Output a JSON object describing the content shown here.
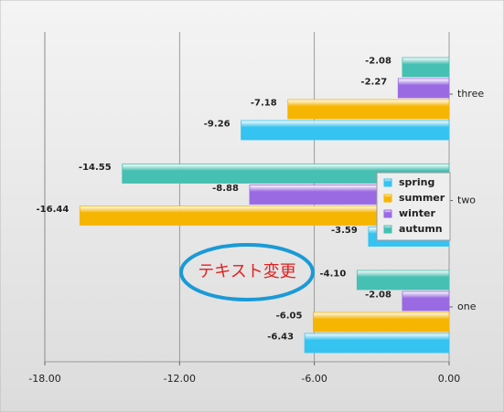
{
  "chart_data": {
    "type": "hbar",
    "categories": [
      "one",
      "two",
      "three"
    ],
    "series": [
      {
        "name": "spring",
        "color": "#35c3f2",
        "values": [
          -6.43,
          -3.59,
          -9.26
        ]
      },
      {
        "name": "summer",
        "color": "#f6b500",
        "values": [
          -6.05,
          -16.44,
          -7.18
        ]
      },
      {
        "name": "winter",
        "color": "#9a6ae2",
        "values": [
          -2.08,
          -8.88,
          -2.27
        ]
      },
      {
        "name": "autumn",
        "color": "#45c0b2",
        "values": [
          -4.1,
          -14.55,
          -2.08
        ],
        "value_labels": [
          "-4.10",
          "-14.55",
          "-2.08"
        ]
      }
    ],
    "xlim": [
      -18,
      0
    ],
    "xticks": [
      {
        "value": -18,
        "label": "-18.00"
      },
      {
        "value": -12,
        "label": "-12.00"
      },
      {
        "value": -6,
        "label": "-6.00"
      },
      {
        "value": 0,
        "label": "0.00"
      }
    ],
    "grid": true,
    "legend": "right",
    "annotation": "テキスト変更"
  }
}
